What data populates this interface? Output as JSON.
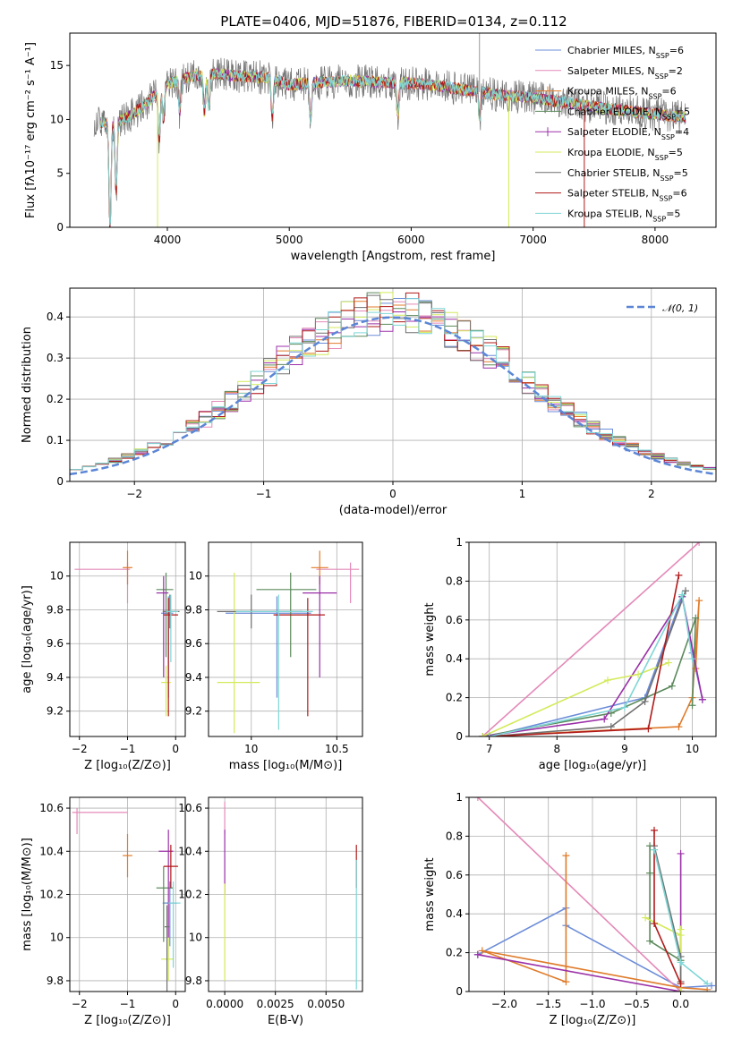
{
  "figure": {
    "title": "PLATE=0406, MJD=51876, FIBERID=0134, z=0.112"
  },
  "models": [
    {
      "name": "Chabrier MILES",
      "nssp": "6",
      "color": "#6b8cd9"
    },
    {
      "name": "Salpeter MILES",
      "nssp": "2",
      "color": "#e48ab8"
    },
    {
      "name": "Kroupa MILES",
      "nssp": "6",
      "color": "#e07b2a"
    },
    {
      "name": "Chabrier ELODIE",
      "nssp": "5",
      "color": "#5c8a5c"
    },
    {
      "name": "Salpeter ELODIE",
      "nssp": "4",
      "color": "#9b30a8"
    },
    {
      "name": "Kroupa ELODIE",
      "nssp": "5",
      "color": "#d4ea5a"
    },
    {
      "name": "Chabrier STELIB",
      "nssp": "5",
      "color": "#707070"
    },
    {
      "name": "Salpeter STELIB",
      "nssp": "6",
      "color": "#b01a1a"
    },
    {
      "name": "Kroupa STELIB",
      "nssp": "5",
      "color": "#7fd6d6"
    }
  ],
  "chart_data": [
    {
      "id": "spectrum",
      "type": "line",
      "title": "PLATE=0406, MJD=51876, FIBERID=0134, z=0.112",
      "xlabel": "wavelength [Angstrom, rest frame]",
      "ylabel": "Flux [fλ10⁻¹⁷ erg cm⁻² s⁻¹ A⁻¹]",
      "xlim": [
        3200,
        8500
      ],
      "ylim": [
        0,
        18
      ],
      "xticks": [
        4000,
        5000,
        6000,
        7000,
        8000
      ],
      "yticks": [
        0,
        5,
        10,
        15
      ],
      "grid": false,
      "legend": "top-right",
      "continuum": {
        "x": [
          3400,
          3500,
          3650,
          3800,
          4000,
          4200,
          4400,
          4600,
          4800,
          5000,
          5200,
          5500,
          5800,
          6100,
          6400,
          6700,
          7000,
          7300,
          7600,
          7900,
          8250
        ],
        "y": [
          10.0,
          9.6,
          10.0,
          11.2,
          13.3,
          14.0,
          14.2,
          14.0,
          13.9,
          13.2,
          13.4,
          13.6,
          13.4,
          13.3,
          12.8,
          12.3,
          12.0,
          11.5,
          11.0,
          10.6,
          10.2
        ]
      },
      "absorption_features": [
        {
          "x": 3530,
          "depth": 10.0
        },
        {
          "x": 3580,
          "depth": 6.5
        },
        {
          "x": 3934,
          "depth": 4.5
        },
        {
          "x": 3969,
          "depth": 3.0
        },
        {
          "x": 4102,
          "depth": 3.0
        },
        {
          "x": 4304,
          "depth": 3.5
        },
        {
          "x": 4340,
          "depth": 3.0
        },
        {
          "x": 4861,
          "depth": 3.5
        },
        {
          "x": 5175,
          "depth": 3.5
        },
        {
          "x": 5890,
          "depth": 3.0
        },
        {
          "x": 6563,
          "depth": 2.5
        }
      ],
      "spikes": [
        {
          "x": 3920,
          "to": 0
        },
        {
          "x": 6560,
          "to": 18
        },
        {
          "x": 6800,
          "to": 0
        },
        {
          "x": 7420,
          "to": 0
        }
      ]
    },
    {
      "id": "residuals",
      "type": "bar",
      "xlabel": "(data-model)/error",
      "ylabel": "Normed distribution",
      "xlim": [
        -2.5,
        2.5
      ],
      "ylim": [
        0,
        0.47
      ],
      "xticks": [
        -2,
        -1,
        0,
        1,
        2
      ],
      "yticks": [
        0.0,
        0.1,
        0.2,
        0.3,
        0.4
      ],
      "grid": true,
      "legend": "top-right",
      "reference_label": "𝒩(0, 1)",
      "reference_color": "#5b86d6",
      "bin_width": 0.1,
      "bin_start": -2.5
    },
    {
      "id": "age-vs-z",
      "type": "scatter",
      "xlabel": "Z [log₁₀(Z/Z⊙)]",
      "ylabel": "age  [log₁₀(age/yr)]",
      "xlim": [
        -2.2,
        0.2
      ],
      "ylim": [
        9.05,
        10.2
      ],
      "xticks": [
        -2,
        -1,
        0
      ],
      "yticks": [
        9.2,
        9.4,
        9.6,
        9.8,
        10.0
      ],
      "grid": true,
      "points": [
        {
          "model": 0,
          "x": -0.15,
          "y": 9.78,
          "xerr": [
            0.15,
            0.1
          ],
          "yerr": [
            0.5,
            0.1
          ]
        },
        {
          "model": 1,
          "x": -1.0,
          "y": 10.04,
          "xerr": [
            1.1,
            0.05
          ],
          "yerr": [
            0.2,
            0.04
          ]
        },
        {
          "model": 2,
          "x": -1.0,
          "y": 10.05,
          "xerr": [
            0.1,
            0.1
          ],
          "yerr": [
            0.1,
            0.1
          ]
        },
        {
          "model": 3,
          "x": -0.2,
          "y": 9.92,
          "xerr": [
            0.2,
            0.15
          ],
          "yerr": [
            0.4,
            0.1
          ]
        },
        {
          "model": 4,
          "x": -0.25,
          "y": 9.9,
          "xerr": [
            0.15,
            0.1
          ],
          "yerr": [
            0.5,
            0.1
          ]
        },
        {
          "model": 5,
          "x": -0.2,
          "y": 9.37,
          "xerr": [
            0.1,
            0.1
          ],
          "yerr": [
            0.2,
            0.1
          ]
        },
        {
          "model": 6,
          "x": -0.12,
          "y": 9.79,
          "xerr": [
            0.15,
            0.2
          ],
          "yerr": [
            0.1,
            0.1
          ]
        },
        {
          "model": 7,
          "x": -0.15,
          "y": 9.77,
          "xerr": [
            0.1,
            0.2
          ],
          "yerr": [
            0.6,
            0.1
          ]
        },
        {
          "model": 8,
          "x": -0.1,
          "y": 9.79,
          "xerr": [
            0.1,
            0.15
          ],
          "yerr": [
            0.3,
            0.1
          ]
        }
      ]
    },
    {
      "id": "age-vs-mass",
      "type": "scatter",
      "xlabel": "mass [log₁₀(M/M⊙)]",
      "ylabel": "",
      "xlim": [
        9.75,
        10.65
      ],
      "ylim": [
        9.05,
        10.2
      ],
      "xticks": [
        10.0,
        10.5
      ],
      "yticks": [
        9.2,
        9.4,
        9.6,
        9.8,
        10.0
      ],
      "grid": true,
      "points": [
        {
          "model": 0,
          "x": 10.15,
          "y": 9.78,
          "xerr": [
            0.3,
            0.2
          ],
          "yerr": [
            0.5,
            0.1
          ]
        },
        {
          "model": 1,
          "x": 10.58,
          "y": 10.04,
          "xerr": [
            0.2,
            0.05
          ],
          "yerr": [
            0.2,
            0.04
          ]
        },
        {
          "model": 2,
          "x": 10.4,
          "y": 10.05,
          "xerr": [
            0.05,
            0.05
          ],
          "yerr": [
            0.1,
            0.1
          ]
        },
        {
          "model": 3,
          "x": 10.23,
          "y": 9.92,
          "xerr": [
            0.2,
            0.15
          ],
          "yerr": [
            0.4,
            0.1
          ]
        },
        {
          "model": 4,
          "x": 10.4,
          "y": 9.9,
          "xerr": [
            0.1,
            0.1
          ],
          "yerr": [
            0.5,
            0.1
          ]
        },
        {
          "model": 5,
          "x": 9.9,
          "y": 9.37,
          "xerr": [
            0.1,
            0.15
          ],
          "yerr": [
            0.3,
            0.65
          ]
        },
        {
          "model": 6,
          "x": 10.0,
          "y": 9.79,
          "xerr": [
            0.2,
            0.3
          ],
          "yerr": [
            0.1,
            0.1
          ]
        },
        {
          "model": 7,
          "x": 10.33,
          "y": 9.77,
          "xerr": [
            0.2,
            0.1
          ],
          "yerr": [
            0.6,
            0.1
          ]
        },
        {
          "model": 8,
          "x": 10.16,
          "y": 9.79,
          "xerr": [
            0.25,
            0.2
          ],
          "yerr": [
            0.7,
            0.1
          ]
        }
      ]
    },
    {
      "id": "weight-vs-age",
      "type": "line",
      "xlabel": "age  [log₁₀(age/yr)]",
      "ylabel": "mass weight",
      "xlim": [
        6.7,
        10.35
      ],
      "ylim": [
        0,
        1
      ],
      "xticks": [
        7,
        8,
        9,
        10
      ],
      "yticks": [
        0.0,
        0.2,
        0.4,
        0.6,
        0.8,
        1.0
      ],
      "grid": true,
      "series": [
        {
          "model": 0,
          "x": [
            7.0,
            9.3,
            9.85,
            10.0,
            10.15
          ],
          "y": [
            0.0,
            0.2,
            0.72,
            0.43,
            0.19
          ]
        },
        {
          "model": 1,
          "x": [
            6.9,
            10.1
          ],
          "y": [
            0.0,
            1.0
          ]
        },
        {
          "model": 2,
          "x": [
            6.9,
            9.8,
            10.0,
            10.1,
            10.05
          ],
          "y": [
            0.0,
            0.05,
            0.2,
            0.7,
            0.35
          ]
        },
        {
          "model": 3,
          "x": [
            6.9,
            8.8,
            9.7,
            10.05,
            10.0
          ],
          "y": [
            0.0,
            0.12,
            0.26,
            0.61,
            0.16
          ]
        },
        {
          "model": 4,
          "x": [
            6.9,
            8.7,
            9.85,
            10.15
          ],
          "y": [
            0.0,
            0.09,
            0.72,
            0.19
          ]
        },
        {
          "model": 5,
          "x": [
            6.9,
            8.75,
            9.2,
            9.65
          ],
          "y": [
            0.0,
            0.29,
            0.32,
            0.38
          ]
        },
        {
          "model": 6,
          "x": [
            7.0,
            8.8,
            9.3,
            9.9
          ],
          "y": [
            0.0,
            0.05,
            0.18,
            0.75
          ]
        },
        {
          "model": 7,
          "x": [
            7.0,
            9.35,
            9.8
          ],
          "y": [
            0.0,
            0.04,
            0.83
          ]
        },
        {
          "model": 8,
          "x": [
            7.0,
            9.0,
            9.85,
            10.0
          ],
          "y": [
            0.0,
            0.15,
            0.73,
            0.4
          ]
        }
      ]
    },
    {
      "id": "mass-vs-z",
      "type": "scatter",
      "xlabel": "Z [log₁₀(Z/Z⊙)]",
      "ylabel": "mass [log₁₀(M/M⊙)]",
      "xlim": [
        -2.2,
        0.2
      ],
      "ylim": [
        9.75,
        10.65
      ],
      "xticks": [
        -2,
        -1,
        0
      ],
      "yticks": [
        9.8,
        10.0,
        10.2,
        10.4,
        10.6
      ],
      "grid": true,
      "points": [
        {
          "model": 0,
          "x": -0.12,
          "y": 10.16,
          "xerr": [
            0.15,
            0.15
          ],
          "yerr": [
            0.2,
            0.1
          ]
        },
        {
          "model": 1,
          "x": -2.05,
          "y": 10.58,
          "xerr": [
            0.1,
            1.05
          ],
          "yerr": [
            0.1,
            0.02
          ]
        },
        {
          "model": 2,
          "x": -1.0,
          "y": 10.38,
          "xerr": [
            0.1,
            0.1
          ],
          "yerr": [
            0.1,
            0.1
          ]
        },
        {
          "model": 3,
          "x": -0.25,
          "y": 10.23,
          "xerr": [
            0.15,
            0.2
          ],
          "yerr": [
            0.25,
            0.1
          ]
        },
        {
          "model": 4,
          "x": -0.15,
          "y": 10.4,
          "xerr": [
            0.2,
            0.1
          ],
          "yerr": [
            0.4,
            0.1
          ]
        },
        {
          "model": 5,
          "x": -0.15,
          "y": 9.9,
          "xerr": [
            0.15,
            0.1
          ],
          "yerr": [
            0.1,
            0.1
          ]
        },
        {
          "model": 6,
          "x": -0.18,
          "y": 10.05,
          "xerr": [
            0.05,
            0.05
          ],
          "yerr": [
            0.3,
            0.1
          ]
        },
        {
          "model": 7,
          "x": -0.1,
          "y": 10.33,
          "xerr": [
            0.15,
            0.15
          ],
          "yerr": [
            0.1,
            0.1
          ]
        },
        {
          "model": 8,
          "x": -0.05,
          "y": 10.16,
          "xerr": [
            0.1,
            0.15
          ],
          "yerr": [
            0.3,
            0.1
          ]
        }
      ]
    },
    {
      "id": "mass-vs-ebv",
      "type": "scatter",
      "xlabel": "E(B-V)",
      "ylabel": "",
      "xlim": [
        -0.0008,
        0.0068
      ],
      "ylim": [
        9.75,
        10.65
      ],
      "xticks": [
        0.0,
        0.0025,
        0.005
      ],
      "xticklabels": [
        "0.0000",
        "0.0025",
        "0.0050"
      ],
      "yticks": [
        9.8,
        10.0,
        10.2,
        10.4,
        10.6
      ],
      "grid": true,
      "points": [
        {
          "model": 1,
          "x": 0.0,
          "y": 10.58,
          "xerr": [
            0,
            0
          ],
          "yerr": [
            0.1,
            0.05
          ]
        },
        {
          "model": 4,
          "x": 0.0,
          "y": 10.4,
          "xerr": [
            0,
            0
          ],
          "yerr": [
            0.2,
            0.1
          ]
        },
        {
          "model": 5,
          "x": 0.0,
          "y": 10.0,
          "xerr": [
            0,
            0
          ],
          "yerr": [
            0.2,
            0.25
          ]
        },
        {
          "model": 7,
          "x": 0.0065,
          "y": 10.33,
          "xerr": [
            0,
            0
          ],
          "yerr": [
            0.1,
            0.1
          ]
        },
        {
          "model": 8,
          "x": 0.0065,
          "y": 10.16,
          "xerr": [
            0,
            0
          ],
          "yerr": [
            0.4,
            0.2
          ]
        }
      ]
    },
    {
      "id": "weight-vs-z",
      "type": "line",
      "xlabel": "Z [log₁₀(Z/Z⊙)]",
      "ylabel": "mass weight",
      "xlim": [
        -2.4,
        0.4
      ],
      "ylim": [
        0,
        1
      ],
      "xticks": [
        -2.0,
        -1.5,
        -1.0,
        -0.5,
        0.0
      ],
      "xticklabels": [
        "−2.0",
        "−1.5",
        "−1.0",
        "−0.5",
        "0.0"
      ],
      "yticks": [
        0.0,
        0.2,
        0.4,
        0.6,
        0.8,
        1.0
      ],
      "grid": true,
      "series": [
        {
          "model": 0,
          "x": [
            -2.3,
            -1.3,
            -1.3,
            0.0,
            0.35
          ],
          "y": [
            0.19,
            0.43,
            0.34,
            0.02,
            0.03
          ]
        },
        {
          "model": 1,
          "x": [
            -2.3,
            0.0
          ],
          "y": [
            1.0,
            0.0
          ]
        },
        {
          "model": 2,
          "x": [
            -1.3,
            -1.3,
            -2.25,
            0.0,
            0.3
          ],
          "y": [
            0.7,
            0.05,
            0.21,
            0.02,
            0.01
          ]
        },
        {
          "model": 3,
          "x": [
            -0.35,
            -0.35,
            -0.35,
            0.0
          ],
          "y": [
            0.75,
            0.61,
            0.26,
            0.16
          ]
        },
        {
          "model": 4,
          "x": [
            0.0,
            0.0,
            -2.3,
            0.0
          ],
          "y": [
            0.71,
            0.0,
            0.19,
            0.0
          ]
        },
        {
          "model": 5,
          "x": [
            -0.4,
            0.0,
            0.0,
            0.0
          ],
          "y": [
            0.38,
            0.29,
            0.32,
            0.0
          ]
        },
        {
          "model": 6,
          "x": [
            -0.3,
            0.0,
            0.0
          ],
          "y": [
            0.75,
            0.18,
            0.05
          ]
        },
        {
          "model": 7,
          "x": [
            -0.3,
            -0.3,
            0.0
          ],
          "y": [
            0.83,
            0.35,
            0.04
          ]
        },
        {
          "model": 8,
          "x": [
            -0.3,
            0.0,
            0.3
          ],
          "y": [
            0.73,
            0.15,
            0.04
          ]
        }
      ]
    }
  ]
}
